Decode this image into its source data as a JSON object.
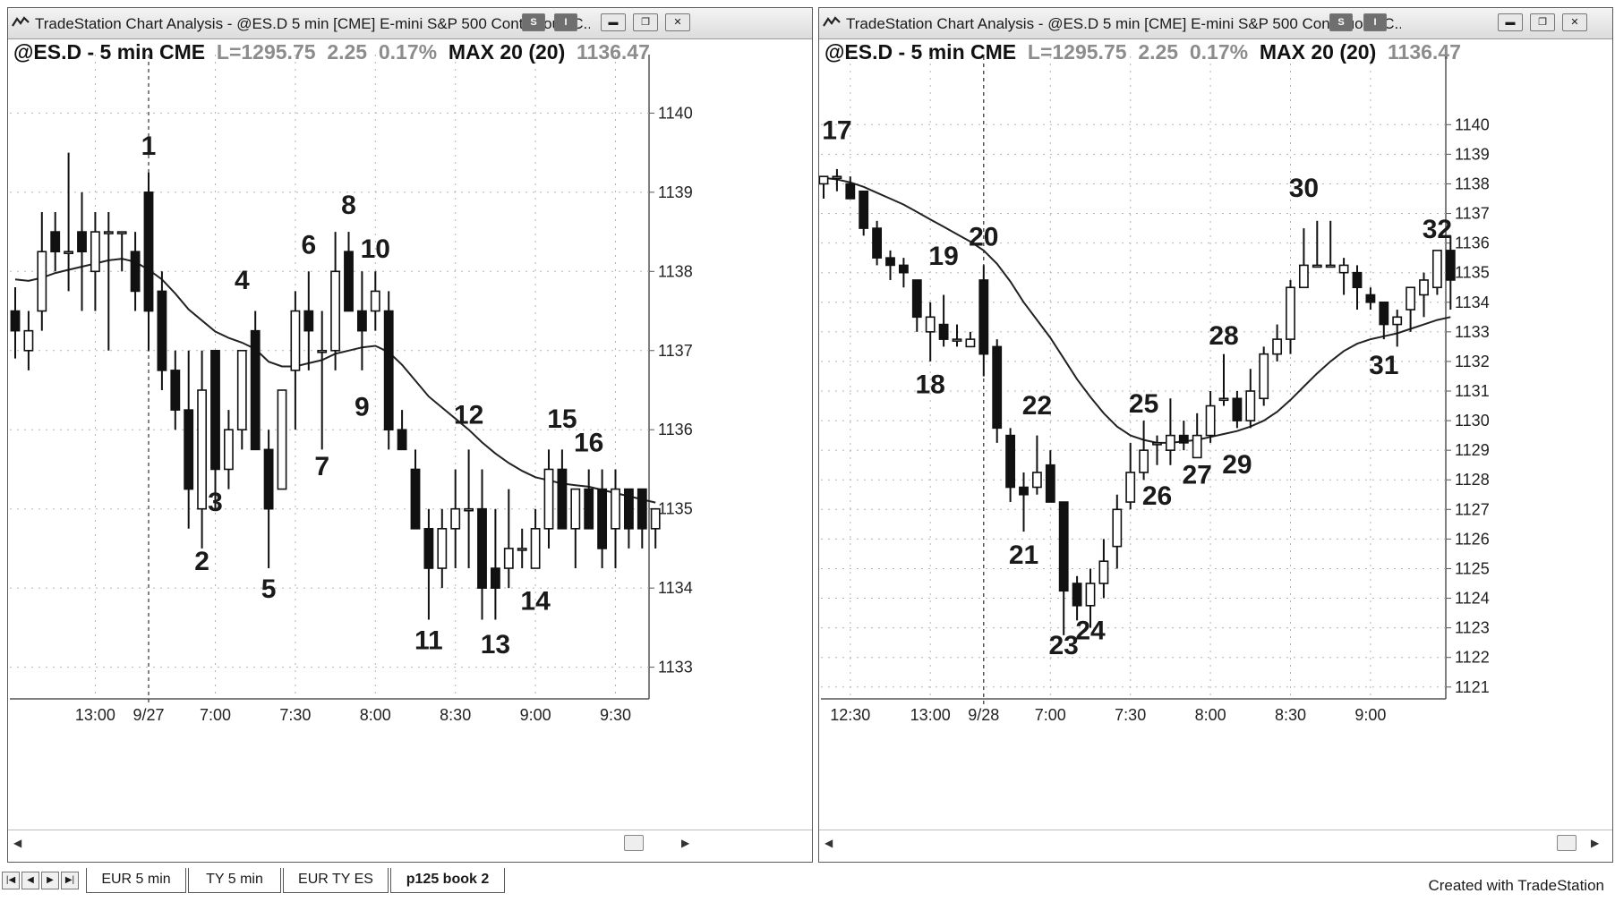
{
  "windows": {
    "left": {
      "title": "TradeStation Chart Analysis - @ES.D 5 min [CME] E-mini S&P 500 Continuous C...",
      "symbol": "@ES.D - 5 min CME",
      "last": "L=1295.75",
      "change": "2.25",
      "change_pct": "0.17%",
      "indicator": "MAX 20 (20)",
      "indicator_value": "1136.47"
    },
    "right": {
      "title": "TradeStation Chart Analysis - @ES.D 5 min [CME] E-mini S&P 500 Continuous C...",
      "symbol": "@ES.D - 5 min CME",
      "last": "L=1295.75",
      "change": "2.25",
      "change_pct": "0.17%",
      "indicator": "MAX 20 (20)",
      "indicator_value": "1136.47"
    }
  },
  "title_buttons": {
    "s_label": "S",
    "i_label": "I"
  },
  "tabs": [
    "EUR 5 min",
    "TY 5 min",
    "EUR TY ES",
    "p125 book 2"
  ],
  "footer": "Created with TradeStation",
  "colors": {
    "bar_dark": "#111111",
    "bar_light": "#ffffff",
    "ema": "#222222",
    "grid": "#b5b5b5"
  },
  "chart_data": [
    {
      "type": "candlestick",
      "ylim": [
        1132.6,
        1140.4
      ],
      "yticks": [
        1133,
        1134,
        1135,
        1136,
        1137,
        1138,
        1139,
        1140
      ],
      "xticks": [
        {
          "label": "13:00",
          "bar": 6
        },
        {
          "label": "9/27",
          "bar": 10
        },
        {
          "label": "7:00",
          "bar": 15
        },
        {
          "label": "7:30",
          "bar": 21
        },
        {
          "label": "8:00",
          "bar": 27
        },
        {
          "label": "8:30",
          "bar": 33
        },
        {
          "label": "9:00",
          "bar": 39
        },
        {
          "label": "9:30",
          "bar": 45
        }
      ],
      "session_break_bar": 10,
      "candles": [
        {
          "o": 1137.5,
          "h": 1137.8,
          "l": 1136.9,
          "c": 1137.25
        },
        {
          "o": 1137.0,
          "h": 1137.5,
          "l": 1136.75,
          "c": 1137.25
        },
        {
          "o": 1137.5,
          "h": 1138.75,
          "l": 1137.25,
          "c": 1138.25
        },
        {
          "o": 1138.5,
          "h": 1138.75,
          "l": 1138.0,
          "c": 1138.25
        },
        {
          "o": 1138.25,
          "h": 1139.5,
          "l": 1137.75,
          "c": 1138.25
        },
        {
          "o": 1138.5,
          "h": 1139.0,
          "l": 1137.5,
          "c": 1138.25
        },
        {
          "o": 1138.0,
          "h": 1138.75,
          "l": 1137.5,
          "c": 1138.5
        },
        {
          "o": 1138.5,
          "h": 1138.75,
          "l": 1137.0,
          "c": 1138.5
        },
        {
          "o": 1138.5,
          "h": 1138.5,
          "l": 1138.0,
          "c": 1138.5
        },
        {
          "o": 1138.25,
          "h": 1138.5,
          "l": 1137.5,
          "c": 1137.75
        },
        {
          "o": 1139.0,
          "h": 1139.25,
          "l": 1137.0,
          "c": 1137.5
        },
        {
          "o": 1137.75,
          "h": 1138.0,
          "l": 1136.5,
          "c": 1136.75
        },
        {
          "o": 1136.75,
          "h": 1137.0,
          "l": 1136.0,
          "c": 1136.25
        },
        {
          "o": 1136.25,
          "h": 1137.0,
          "l": 1134.75,
          "c": 1135.25
        },
        {
          "o": 1135.0,
          "h": 1137.0,
          "l": 1134.5,
          "c": 1136.5
        },
        {
          "o": 1137.0,
          "h": 1137.0,
          "l": 1135.0,
          "c": 1135.5
        },
        {
          "o": 1135.5,
          "h": 1136.25,
          "l": 1135.25,
          "c": 1136.0
        },
        {
          "o": 1136.0,
          "h": 1137.0,
          "l": 1135.75,
          "c": 1137.0
        },
        {
          "o": 1137.25,
          "h": 1137.5,
          "l": 1135.75,
          "c": 1135.75
        },
        {
          "o": 1135.75,
          "h": 1136.0,
          "l": 1134.25,
          "c": 1135.0
        },
        {
          "o": 1135.25,
          "h": 1136.5,
          "l": 1135.25,
          "c": 1136.5
        },
        {
          "o": 1136.75,
          "h": 1137.75,
          "l": 1136.0,
          "c": 1137.5
        },
        {
          "o": 1137.5,
          "h": 1138.0,
          "l": 1136.75,
          "c": 1137.25
        },
        {
          "o": 1137.0,
          "h": 1137.5,
          "l": 1135.75,
          "c": 1137.0
        },
        {
          "o": 1137.0,
          "h": 1138.5,
          "l": 1136.75,
          "c": 1138.0
        },
        {
          "o": 1138.25,
          "h": 1138.5,
          "l": 1137.5,
          "c": 1137.5
        },
        {
          "o": 1137.5,
          "h": 1138.0,
          "l": 1136.75,
          "c": 1137.25
        },
        {
          "o": 1137.5,
          "h": 1138.0,
          "l": 1137.25,
          "c": 1137.75
        },
        {
          "o": 1137.5,
          "h": 1137.75,
          "l": 1135.75,
          "c": 1136.0
        },
        {
          "o": 1136.0,
          "h": 1136.25,
          "l": 1135.75,
          "c": 1135.75
        },
        {
          "o": 1135.5,
          "h": 1135.75,
          "l": 1134.75,
          "c": 1134.75
        },
        {
          "o": 1134.75,
          "h": 1135.0,
          "l": 1133.6,
          "c": 1134.25
        },
        {
          "o": 1134.25,
          "h": 1135.0,
          "l": 1134.0,
          "c": 1134.75
        },
        {
          "o": 1134.75,
          "h": 1135.5,
          "l": 1134.25,
          "c": 1135.0
        },
        {
          "o": 1135.0,
          "h": 1135.75,
          "l": 1134.25,
          "c": 1135.0
        },
        {
          "o": 1135.0,
          "h": 1135.5,
          "l": 1133.6,
          "c": 1134.0
        },
        {
          "o": 1134.25,
          "h": 1135.0,
          "l": 1133.6,
          "c": 1134.0
        },
        {
          "o": 1134.25,
          "h": 1135.25,
          "l": 1134.0,
          "c": 1134.5
        },
        {
          "o": 1134.5,
          "h": 1134.75,
          "l": 1134.25,
          "c": 1134.5
        },
        {
          "o": 1134.25,
          "h": 1135.0,
          "l": 1134.25,
          "c": 1134.75
        },
        {
          "o": 1134.75,
          "h": 1135.75,
          "l": 1134.5,
          "c": 1135.5
        },
        {
          "o": 1135.5,
          "h": 1135.75,
          "l": 1134.75,
          "c": 1134.75
        },
        {
          "o": 1134.75,
          "h": 1135.25,
          "l": 1134.25,
          "c": 1135.25
        },
        {
          "o": 1135.25,
          "h": 1135.5,
          "l": 1134.75,
          "c": 1134.75
        },
        {
          "o": 1135.25,
          "h": 1135.5,
          "l": 1134.25,
          "c": 1134.5
        },
        {
          "o": 1134.75,
          "h": 1135.5,
          "l": 1134.25,
          "c": 1135.25
        },
        {
          "o": 1135.25,
          "h": 1135.25,
          "l": 1134.5,
          "c": 1134.75
        },
        {
          "o": 1135.25,
          "h": 1135.25,
          "l": 1134.5,
          "c": 1134.75
        },
        {
          "o": 1134.75,
          "h": 1135.0,
          "l": 1134.5,
          "c": 1135.0
        }
      ],
      "ema": [
        1137.9,
        1137.88,
        1137.92,
        1137.98,
        1138.02,
        1138.06,
        1138.1,
        1138.14,
        1138.16,
        1138.12,
        1138.02,
        1137.9,
        1137.72,
        1137.52,
        1137.38,
        1137.24,
        1137.16,
        1137.1,
        1137.02,
        1136.86,
        1136.8,
        1136.8,
        1136.84,
        1136.88,
        1136.96,
        1137.0,
        1137.04,
        1137.06,
        1136.98,
        1136.82,
        1136.62,
        1136.42,
        1136.28,
        1136.14,
        1136.0,
        1135.84,
        1135.7,
        1135.58,
        1135.48,
        1135.4,
        1135.36,
        1135.32,
        1135.3,
        1135.28,
        1135.24,
        1135.2,
        1135.16,
        1135.12,
        1135.08
      ],
      "annotations": [
        {
          "text": "1",
          "bar": 10,
          "price": 1139.6
        },
        {
          "text": "2",
          "bar": 14,
          "price": 1134.35
        },
        {
          "text": "3",
          "bar": 15,
          "price": 1135.1
        },
        {
          "text": "4",
          "bar": 17,
          "price": 1137.9
        },
        {
          "text": "5",
          "bar": 19,
          "price": 1134.0
        },
        {
          "text": "6",
          "bar": 22,
          "price": 1138.35
        },
        {
          "text": "7",
          "bar": 23,
          "price": 1135.55
        },
        {
          "text": "8",
          "bar": 25,
          "price": 1138.85
        },
        {
          "text": "9",
          "bar": 26,
          "price": 1136.3
        },
        {
          "text": "10",
          "bar": 27,
          "price": 1138.3
        },
        {
          "text": "11",
          "bar": 31,
          "price": 1133.35
        },
        {
          "text": "12",
          "bar": 34,
          "price": 1136.2
        },
        {
          "text": "13",
          "bar": 36,
          "price": 1133.3
        },
        {
          "text": "14",
          "bar": 39,
          "price": 1133.85
        },
        {
          "text": "15",
          "bar": 41,
          "price": 1136.15
        },
        {
          "text": "16",
          "bar": 43,
          "price": 1135.85
        }
      ]
    },
    {
      "type": "candlestick",
      "ylim": [
        1120.6,
        1141.4
      ],
      "yticks": [
        1121,
        1122,
        1123,
        1124,
        1125,
        1126,
        1127,
        1128,
        1129,
        1130,
        1131,
        1132,
        1133,
        1134,
        1135,
        1136,
        1137,
        1138,
        1139,
        1140
      ],
      "xticks": [
        {
          "label": "12:30",
          "bar": 2
        },
        {
          "label": "13:00",
          "bar": 8
        },
        {
          "label": "9/28",
          "bar": 12
        },
        {
          "label": "7:00",
          "bar": 17
        },
        {
          "label": "7:30",
          "bar": 23
        },
        {
          "label": "8:00",
          "bar": 29
        },
        {
          "label": "8:30",
          "bar": 35
        },
        {
          "label": "9:00",
          "bar": 41
        }
      ],
      "session_break_bar": 12,
      "candles": [
        {
          "o": 1138.0,
          "h": 1138.25,
          "l": 1137.5,
          "c": 1138.25
        },
        {
          "o": 1138.25,
          "h": 1138.5,
          "l": 1137.75,
          "c": 1138.25
        },
        {
          "o": 1138.0,
          "h": 1138.25,
          "l": 1137.5,
          "c": 1137.5
        },
        {
          "o": 1137.75,
          "h": 1137.75,
          "l": 1136.25,
          "c": 1136.5
        },
        {
          "o": 1136.5,
          "h": 1136.75,
          "l": 1135.25,
          "c": 1135.5
        },
        {
          "o": 1135.5,
          "h": 1135.75,
          "l": 1134.75,
          "c": 1135.25
        },
        {
          "o": 1135.25,
          "h": 1135.5,
          "l": 1134.5,
          "c": 1135.0
        },
        {
          "o": 1134.75,
          "h": 1134.75,
          "l": 1133.0,
          "c": 1133.5
        },
        {
          "o": 1133.0,
          "h": 1134.0,
          "l": 1132.0,
          "c": 1133.5
        },
        {
          "o": 1133.25,
          "h": 1134.25,
          "l": 1132.5,
          "c": 1132.75
        },
        {
          "o": 1132.75,
          "h": 1133.25,
          "l": 1132.5,
          "c": 1132.75
        },
        {
          "o": 1132.5,
          "h": 1133.0,
          "l": 1132.5,
          "c": 1132.75
        },
        {
          "o": 1134.75,
          "h": 1135.25,
          "l": 1131.5,
          "c": 1132.25
        },
        {
          "o": 1132.5,
          "h": 1132.75,
          "l": 1129.25,
          "c": 1129.75
        },
        {
          "o": 1129.5,
          "h": 1129.75,
          "l": 1127.25,
          "c": 1127.75
        },
        {
          "o": 1127.75,
          "h": 1128.25,
          "l": 1126.25,
          "c": 1127.5
        },
        {
          "o": 1127.75,
          "h": 1129.5,
          "l": 1127.5,
          "c": 1128.25
        },
        {
          "o": 1128.5,
          "h": 1129.0,
          "l": 1127.25,
          "c": 1127.25
        },
        {
          "o": 1127.25,
          "h": 1127.25,
          "l": 1122.75,
          "c": 1124.25
        },
        {
          "o": 1124.5,
          "h": 1124.75,
          "l": 1123.25,
          "c": 1123.75
        },
        {
          "o": 1123.75,
          "h": 1125.0,
          "l": 1123.0,
          "c": 1124.5
        },
        {
          "o": 1124.5,
          "h": 1126.0,
          "l": 1124.0,
          "c": 1125.25
        },
        {
          "o": 1125.75,
          "h": 1127.5,
          "l": 1125.0,
          "c": 1127.0
        },
        {
          "o": 1127.25,
          "h": 1129.25,
          "l": 1127.0,
          "c": 1128.25
        },
        {
          "o": 1128.25,
          "h": 1130.0,
          "l": 1128.0,
          "c": 1129.0
        },
        {
          "o": 1129.25,
          "h": 1129.5,
          "l": 1128.5,
          "c": 1129.25
        },
        {
          "o": 1129.0,
          "h": 1130.75,
          "l": 1128.5,
          "c": 1129.5
        },
        {
          "o": 1129.5,
          "h": 1130.0,
          "l": 1129.0,
          "c": 1129.25
        },
        {
          "o": 1128.75,
          "h": 1130.25,
          "l": 1128.75,
          "c": 1129.5
        },
        {
          "o": 1129.5,
          "h": 1131.0,
          "l": 1129.25,
          "c": 1130.5
        },
        {
          "o": 1130.75,
          "h": 1132.25,
          "l": 1130.5,
          "c": 1130.75
        },
        {
          "o": 1130.75,
          "h": 1131.0,
          "l": 1129.75,
          "c": 1130.0
        },
        {
          "o": 1130.0,
          "h": 1131.75,
          "l": 1129.75,
          "c": 1131.0
        },
        {
          "o": 1130.75,
          "h": 1132.5,
          "l": 1130.5,
          "c": 1132.25
        },
        {
          "o": 1132.25,
          "h": 1133.25,
          "l": 1132.0,
          "c": 1132.75
        },
        {
          "o": 1132.75,
          "h": 1134.75,
          "l": 1132.25,
          "c": 1134.5
        },
        {
          "o": 1134.5,
          "h": 1136.5,
          "l": 1134.5,
          "c": 1135.25
        },
        {
          "o": 1135.25,
          "h": 1136.75,
          "l": 1135.25,
          "c": 1135.25
        },
        {
          "o": 1135.25,
          "h": 1136.75,
          "l": 1135.25,
          "c": 1135.25
        },
        {
          "o": 1135.0,
          "h": 1135.5,
          "l": 1134.25,
          "c": 1135.25
        },
        {
          "o": 1135.0,
          "h": 1135.25,
          "l": 1133.75,
          "c": 1134.5
        },
        {
          "o": 1134.25,
          "h": 1134.5,
          "l": 1133.75,
          "c": 1134.0
        },
        {
          "o": 1134.0,
          "h": 1134.0,
          "l": 1132.75,
          "c": 1133.25
        },
        {
          "o": 1133.25,
          "h": 1133.75,
          "l": 1132.5,
          "c": 1133.5
        },
        {
          "o": 1133.75,
          "h": 1134.5,
          "l": 1133.0,
          "c": 1134.5
        },
        {
          "o": 1134.25,
          "h": 1135.0,
          "l": 1133.5,
          "c": 1134.75
        },
        {
          "o": 1134.5,
          "h": 1135.75,
          "l": 1134.25,
          "c": 1135.75
        },
        {
          "o": 1135.75,
          "h": 1136.25,
          "l": 1133.75,
          "c": 1134.75
        }
      ],
      "ema": [
        1138.2,
        1138.15,
        1138.05,
        1137.9,
        1137.7,
        1137.5,
        1137.3,
        1137.05,
        1136.8,
        1136.55,
        1136.3,
        1136.05,
        1135.75,
        1135.3,
        1134.7,
        1134.0,
        1133.4,
        1132.8,
        1132.1,
        1131.4,
        1130.8,
        1130.25,
        1129.8,
        1129.5,
        1129.35,
        1129.25,
        1129.25,
        1129.3,
        1129.35,
        1129.45,
        1129.55,
        1129.65,
        1129.8,
        1130.0,
        1130.3,
        1130.7,
        1131.15,
        1131.6,
        1132.0,
        1132.35,
        1132.6,
        1132.75,
        1132.85,
        1132.95,
        1133.1,
        1133.25,
        1133.4,
        1133.5
      ],
      "annotations": [
        {
          "text": "17",
          "bar": 1,
          "price": 1139.85
        },
        {
          "text": "18",
          "bar": 8,
          "price": 1131.25
        },
        {
          "text": "19",
          "bar": 9,
          "price": 1135.6
        },
        {
          "text": "20",
          "bar": 12,
          "price": 1136.25
        },
        {
          "text": "21",
          "bar": 15,
          "price": 1125.5
        },
        {
          "text": "22",
          "bar": 16,
          "price": 1130.55
        },
        {
          "text": "23",
          "bar": 18,
          "price": 1122.45
        },
        {
          "text": "24",
          "bar": 20,
          "price": 1122.95
        },
        {
          "text": "25",
          "bar": 24,
          "price": 1130.6
        },
        {
          "text": "26",
          "bar": 25,
          "price": 1127.5
        },
        {
          "text": "27",
          "bar": 28,
          "price": 1128.2
        },
        {
          "text": "28",
          "bar": 30,
          "price": 1132.9
        },
        {
          "text": "29",
          "bar": 31,
          "price": 1128.55
        },
        {
          "text": "30",
          "bar": 36,
          "price": 1137.9
        },
        {
          "text": "31",
          "bar": 42,
          "price": 1131.9
        },
        {
          "text": "32",
          "bar": 46,
          "price": 1136.5
        }
      ]
    }
  ]
}
